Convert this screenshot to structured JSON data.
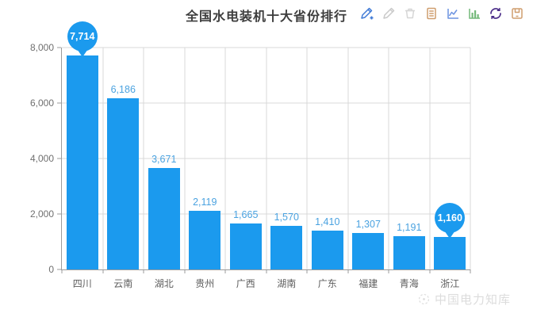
{
  "title": "全国水电装机十大省份排行",
  "toolbar": {
    "icons": [
      {
        "name": "edit-add-icon",
        "shape": "pencil-add",
        "color": "#3f7ad6"
      },
      {
        "name": "edit-icon",
        "shape": "pencil",
        "color": "#c9c9c9"
      },
      {
        "name": "delete-icon",
        "shape": "trash",
        "color": "#d6d6d6"
      },
      {
        "name": "data-view-icon",
        "shape": "document",
        "color": "#cf9e6f"
      },
      {
        "name": "line-chart-icon",
        "shape": "linechart",
        "color": "#6c93e0"
      },
      {
        "name": "bar-chart-icon",
        "shape": "barchart",
        "color": "#74b97a"
      },
      {
        "name": "refresh-icon",
        "shape": "refresh",
        "color": "#4a2c88"
      },
      {
        "name": "save-icon",
        "shape": "save",
        "color": "#cf9e6f"
      }
    ]
  },
  "chart_data": {
    "type": "bar",
    "title": "全国水电装机十大省份排行",
    "categories": [
      "四川",
      "云南",
      "湖北",
      "贵州",
      "广西",
      "湖南",
      "广东",
      "福建",
      "青海",
      "浙江"
    ],
    "values": [
      7714,
      6186,
      3671,
      2119,
      1665,
      1570,
      1410,
      1307,
      1191,
      1160
    ],
    "value_labels": [
      "7,714",
      "6,186",
      "3,671",
      "2,119",
      "1,665",
      "1,570",
      "1,410",
      "1,307",
      "1,191",
      "1,160"
    ],
    "xlabel": "",
    "ylabel": "",
    "ylim": [
      0,
      8000
    ],
    "yticks": [
      0,
      2000,
      4000,
      6000,
      8000
    ],
    "ytick_labels": [
      "0",
      "2,000",
      "4,000",
      "6,000",
      "8,000"
    ],
    "grid": true,
    "legend": false,
    "bar_color": "#1b9aee",
    "value_label_color": "#4aa2e0",
    "pin_indices": [
      0,
      9
    ]
  },
  "watermark": {
    "text": "中国电力知库"
  }
}
